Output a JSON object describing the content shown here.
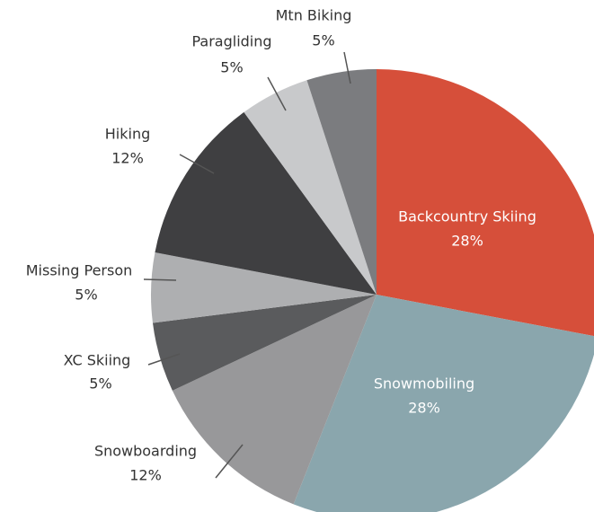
{
  "chart_data": {
    "type": "pie",
    "categories": [
      "Backcountry Skiing",
      "Snowmobiling",
      "Snowboarding",
      "XC Skiing",
      "Missing Person",
      "Hiking",
      "Paragliding",
      "Mtn Biking"
    ],
    "values": [
      28,
      28,
      12,
      5,
      5,
      12,
      5,
      5
    ],
    "value_labels": [
      "28%",
      "28%",
      "12%",
      "5%",
      "5%",
      "12%",
      "5%",
      "5%"
    ],
    "colors": [
      "#d64f3a",
      "#8aa6ad",
      "#98989a",
      "#5a5b5d",
      "#aeafb1",
      "#3f3f41",
      "#c8c9cb",
      "#7b7c7f"
    ]
  }
}
